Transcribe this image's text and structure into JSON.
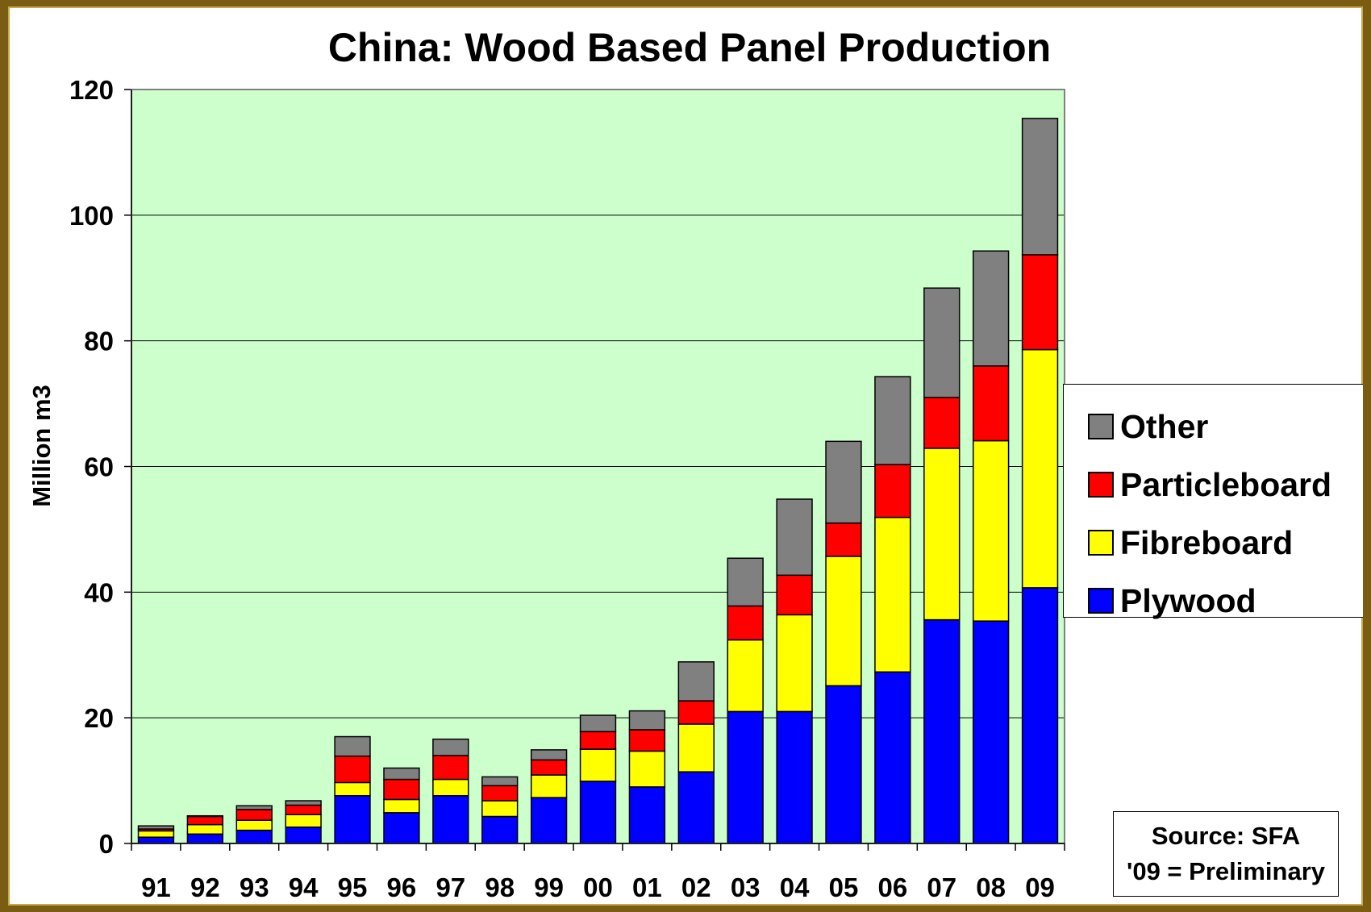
{
  "chart_data": {
    "type": "bar",
    "stacked": true,
    "title": "China: Wood Based Panel Production",
    "xlabel": "",
    "ylabel": "Million m3",
    "ylim": [
      0,
      120
    ],
    "yticks": [
      0,
      20,
      40,
      60,
      80,
      100,
      120
    ],
    "grid": "horizontal",
    "plot_background": "#ccffcc",
    "legend_position": "right",
    "categories": [
      "91",
      "92",
      "93",
      "94",
      "95",
      "96",
      "97",
      "98",
      "99",
      "00",
      "01",
      "02",
      "03",
      "04",
      "05",
      "06",
      "07",
      "08",
      "09"
    ],
    "series": [
      {
        "name": "Plywood",
        "color": "#0000ff",
        "values": [
          1.0,
          1.5,
          2.1,
          2.6,
          7.6,
          4.9,
          7.6,
          4.3,
          7.3,
          9.9,
          9.0,
          11.4,
          21.0,
          21.0,
          25.1,
          27.3,
          35.6,
          35.4,
          40.7
        ]
      },
      {
        "name": "Fibreboard",
        "color": "#ffff00",
        "values": [
          1.0,
          1.5,
          1.6,
          2.0,
          2.1,
          2.1,
          2.6,
          2.5,
          3.6,
          5.1,
          5.7,
          7.6,
          11.4,
          15.4,
          20.6,
          24.6,
          27.3,
          28.7,
          37.9
        ]
      },
      {
        "name": "Particleboard",
        "color": "#ff0000",
        "values": [
          0.3,
          1.3,
          1.7,
          1.5,
          4.2,
          3.2,
          3.8,
          2.4,
          2.4,
          2.8,
          3.4,
          3.7,
          5.4,
          6.3,
          5.3,
          8.4,
          8.1,
          11.9,
          15.1
        ]
      },
      {
        "name": "Other",
        "color": "#808080",
        "values": [
          0.5,
          0.1,
          0.6,
          0.7,
          3.1,
          1.8,
          2.6,
          1.4,
          1.6,
          2.6,
          3.0,
          6.2,
          7.6,
          12.1,
          13.0,
          14.0,
          17.4,
          18.3,
          21.7
        ]
      }
    ],
    "legend_order": [
      "Other",
      "Particleboard",
      "Fibreboard",
      "Plywood"
    ],
    "annotation": {
      "line1": "Source: SFA",
      "line2": "'09 = Preliminary"
    }
  }
}
